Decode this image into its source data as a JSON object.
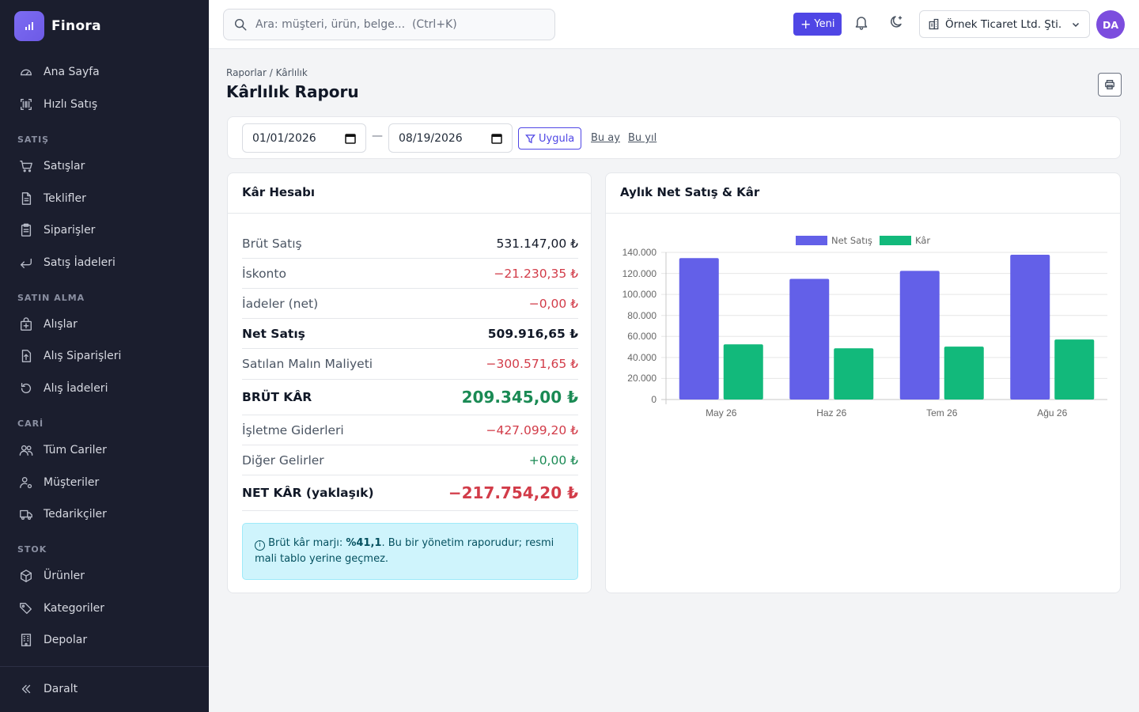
{
  "brand": {
    "name": "Finora"
  },
  "sidebar": {
    "top_items": [
      {
        "label": "Ana Sayfa",
        "icon": "gauge-icon"
      },
      {
        "label": "Hızlı Satış",
        "icon": "barcode-icon"
      }
    ],
    "sections": [
      {
        "title": "SATIŞ",
        "items": [
          {
            "label": "Satışlar",
            "icon": "cart-icon"
          },
          {
            "label": "Teklifler",
            "icon": "document-icon"
          },
          {
            "label": "Siparişler",
            "icon": "clipboard-icon"
          },
          {
            "label": "Satış İadeleri",
            "icon": "return-arrow-icon"
          }
        ]
      },
      {
        "title": "SATIN ALMA",
        "items": [
          {
            "label": "Alışlar",
            "icon": "bag-plus-icon"
          },
          {
            "label": "Alış Siparişleri",
            "icon": "document-arrow-icon"
          },
          {
            "label": "Alış İadeleri",
            "icon": "rotate-ccw-icon"
          }
        ]
      },
      {
        "title": "CARİ",
        "items": [
          {
            "label": "Tüm Cariler",
            "icon": "people-icon"
          },
          {
            "label": "Müşteriler",
            "icon": "person-gear-icon"
          },
          {
            "label": "Tedarikçiler",
            "icon": "truck-icon"
          }
        ]
      },
      {
        "title": "STOK",
        "items": [
          {
            "label": "Ürünler",
            "icon": "box-icon"
          },
          {
            "label": "Kategoriler",
            "icon": "tags-icon"
          },
          {
            "label": "Depolar",
            "icon": "building-icon"
          }
        ]
      }
    ],
    "collapse_label": "Daralt"
  },
  "topbar": {
    "search_placeholder": "Ara: müşteri, ürün, belge...  (Ctrl+K)",
    "new_label": "Yeni",
    "company": "Örnek Ticaret Ltd. Şti.",
    "avatar_initials": "DA"
  },
  "page": {
    "breadcrumb": "Raporlar / Kârlılık",
    "title": "Kârlılık Raporu"
  },
  "filter": {
    "start_date": "01/01/2026",
    "end_date": "08/19/2026",
    "separator": "—",
    "apply_label": "Uygula",
    "this_month": "Bu ay",
    "this_year": "Bu yıl"
  },
  "profit": {
    "title": "Kâr Hesabı",
    "rows": [
      {
        "label": "Brüt Satış",
        "value": "531.147,00 ₺",
        "style": "normal"
      },
      {
        "label": "İskonto",
        "value": "−21.230,35 ₺",
        "style": "neg"
      },
      {
        "label": "İadeler (net)",
        "value": "−0,00 ₺",
        "style": "neg"
      },
      {
        "label": "Net Satış",
        "value": "509.916,65 ₺",
        "style": "bold"
      },
      {
        "label": "Satılan Malın Maliyeti",
        "value": "−300.571,65 ₺",
        "style": "neg"
      },
      {
        "label": "BRÜT KÂR",
        "value": "209.345,00 ₺",
        "style": "big-pos"
      },
      {
        "label": "İşletme Giderleri",
        "value": "−427.099,20 ₺",
        "style": "neg"
      },
      {
        "label": "Diğer Gelirler",
        "value": "+0,00 ₺",
        "style": "pos"
      },
      {
        "label": "NET KÂR (yaklaşık)",
        "value": "−217.754,20 ₺",
        "style": "big-neg"
      }
    ],
    "note_prefix": "Brüt kâr marjı: ",
    "note_margin": "%41,1",
    "note_suffix": ". Bu bir yönetim raporudur; resmi mali tablo yerine geçmez."
  },
  "chart_card": {
    "title": "Aylık Net Satış & Kâr"
  },
  "chart_data": {
    "type": "bar",
    "categories": [
      "May 26",
      "Haz 26",
      "Tem 26",
      "Ağu 26"
    ],
    "series": [
      {
        "name": "Net Satış",
        "color": "#6360e8",
        "values": [
          134500,
          114800,
          122400,
          137700
        ]
      },
      {
        "name": "Kâr",
        "color": "#12b97b",
        "values": [
          52500,
          48700,
          50300,
          57100
        ]
      }
    ],
    "ylim": [
      0,
      140000
    ],
    "yticks": [
      "140.000",
      "120.000",
      "100.000",
      "80.000",
      "60.000",
      "40.000",
      "20.000",
      "0"
    ],
    "legend": "top",
    "grid": true
  },
  "colors": {
    "accent": "#4f46e5",
    "sidebar_bg": "#1b1e2e",
    "negative": "#d23c49",
    "positive": "#1a8a54"
  }
}
